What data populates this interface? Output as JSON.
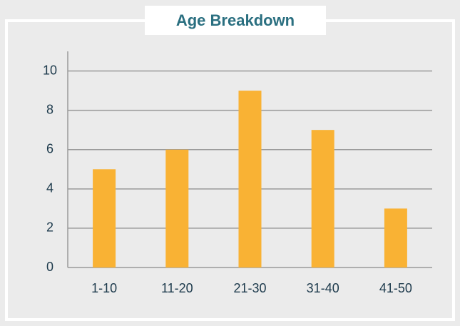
{
  "chart_data": {
    "type": "bar",
    "title": "Age Breakdown",
    "categories": [
      "1-10",
      "11-20",
      "21-30",
      "31-40",
      "41-50"
    ],
    "values": [
      5,
      6,
      9,
      7,
      3
    ],
    "color": "#f9b234",
    "ylim": [
      0,
      11
    ],
    "yticks": [
      0,
      2,
      4,
      6,
      8,
      10
    ],
    "grid": true
  }
}
